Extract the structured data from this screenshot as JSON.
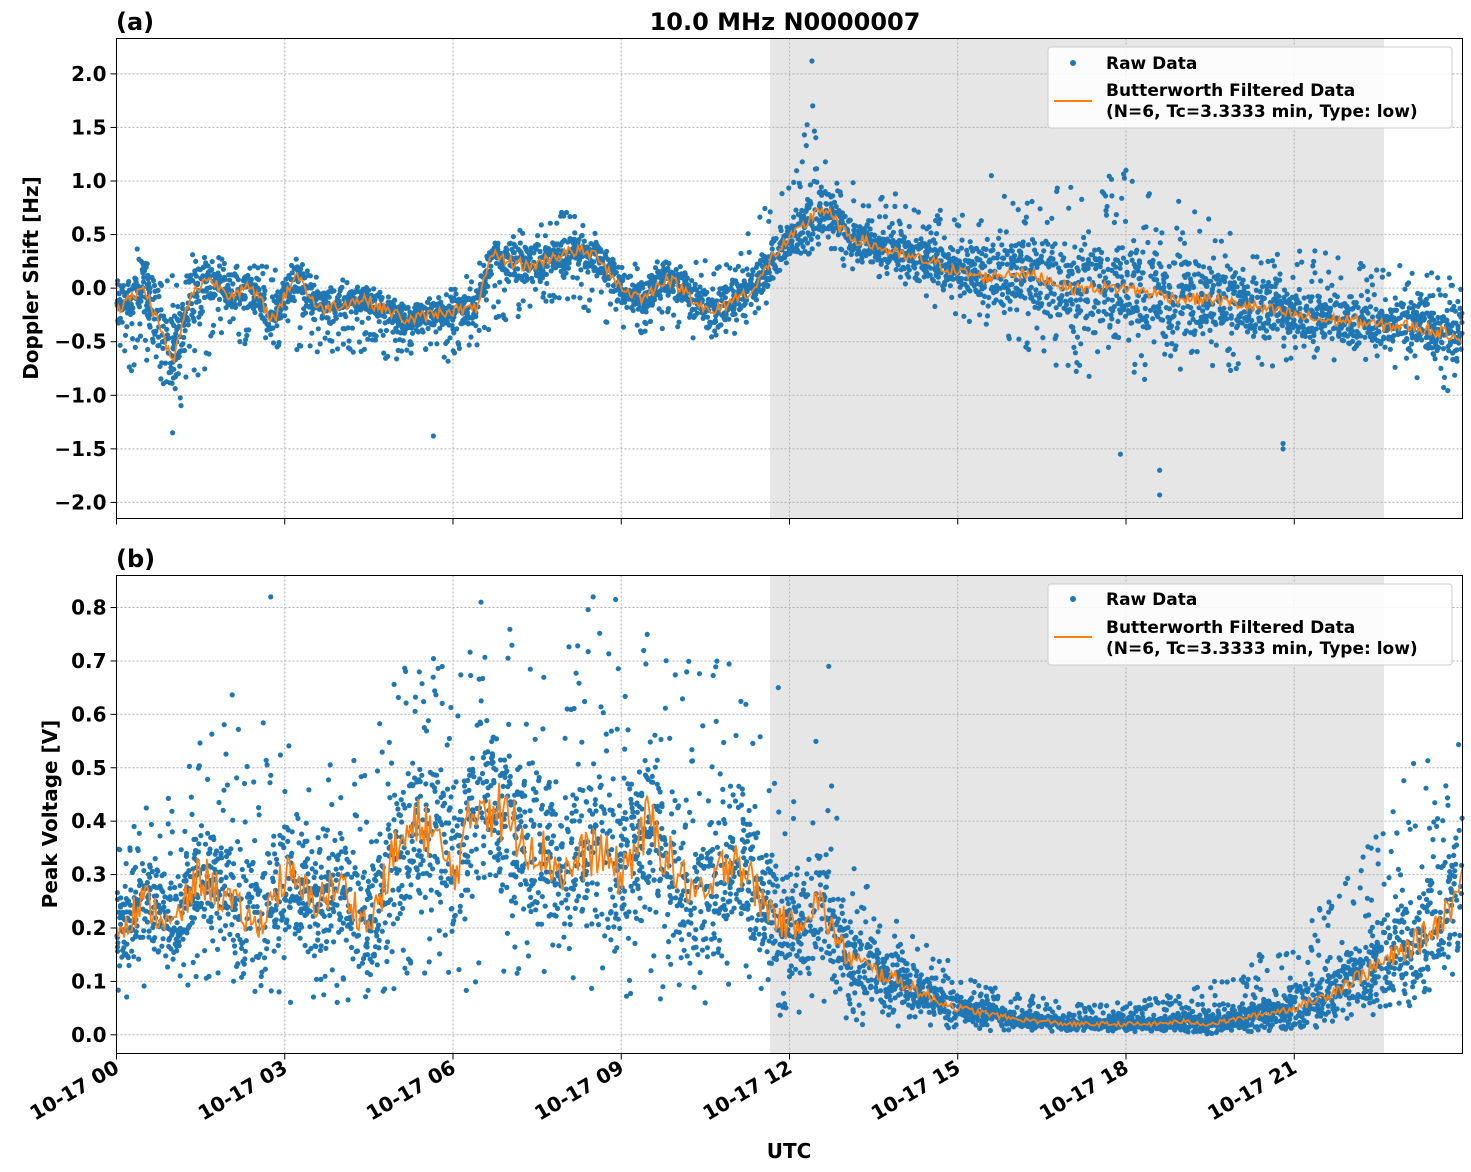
{
  "title": "10.0 MHz N0000007",
  "xlabel": "UTC",
  "x_tick_labels": [
    "10-17 00",
    "10-17 03",
    "10-17 06",
    "10-17 09",
    "10-17 12",
    "10-17 15",
    "10-17 18",
    "10-17 21"
  ],
  "legend": {
    "raw": "Raw Data",
    "filtered_line1": "Butterworth Filtered Data",
    "filtered_line2": "(N=6, Tc=3.3333 min, Type: low)"
  },
  "colors": {
    "raw": "#1f77b4",
    "filtered": "#ff7f0e",
    "shade": "#e6e6e6"
  },
  "chart_data": [
    {
      "type": "scatter",
      "panel_label": "(a)",
      "ylabel": "Doppler Shift [Hz]",
      "xlim_hours": [
        0,
        24
      ],
      "ylim": [
        -2.15,
        2.33
      ],
      "y_ticks": [
        -2.0,
        -1.5,
        -1.0,
        -0.5,
        0.0,
        0.5,
        1.0,
        1.5,
        2.0
      ],
      "y_tick_labels": [
        "−2.0",
        "−1.5",
        "−1.0",
        "−0.5",
        "0.0",
        "0.5",
        "1.0",
        "1.5",
        "2.0"
      ],
      "shaded_interval_hours": [
        11.65,
        22.6
      ],
      "grid": true,
      "legend_position": "upper right",
      "filtered_series": {
        "name": "Butterworth Filtered Data",
        "x_hours": [
          0,
          0.5,
          0.8,
          1.0,
          1.3,
          1.6,
          2.0,
          2.4,
          2.8,
          3.2,
          3.6,
          4.0,
          4.4,
          4.8,
          5.2,
          5.6,
          6.0,
          6.4,
          6.7,
          7.0,
          7.4,
          7.8,
          8.2,
          8.6,
          9.0,
          9.4,
          9.8,
          10.2,
          10.6,
          11.0,
          11.4,
          11.7,
          12.0,
          12.3,
          12.5,
          12.7,
          13.0,
          13.5,
          14.0,
          14.5,
          15.0,
          15.5,
          16.0,
          16.5,
          17.0,
          17.5,
          18.0,
          18.5,
          19.0,
          19.5,
          20.0,
          20.5,
          21.0,
          21.5,
          22.0,
          22.5,
          23.0,
          23.5,
          24.0
        ],
        "values": [
          -0.2,
          0.0,
          -0.4,
          -0.7,
          -0.1,
          0.1,
          -0.05,
          0.0,
          -0.3,
          0.15,
          -0.2,
          -0.15,
          -0.1,
          -0.2,
          -0.3,
          -0.25,
          -0.2,
          -0.2,
          0.3,
          0.25,
          0.2,
          0.3,
          0.35,
          0.3,
          0.0,
          -0.1,
          0.1,
          -0.05,
          -0.25,
          -0.1,
          0.0,
          0.3,
          0.45,
          0.6,
          0.75,
          0.7,
          0.5,
          0.4,
          0.3,
          0.25,
          0.15,
          0.1,
          0.15,
          0.1,
          0.0,
          0.0,
          0.0,
          -0.05,
          -0.1,
          -0.1,
          -0.15,
          -0.2,
          -0.25,
          -0.3,
          -0.3,
          -0.35,
          -0.35,
          -0.4,
          -0.45
        ]
      },
      "raw_series": {
        "name": "Raw Data",
        "envelope_x_hours": [
          0,
          1.0,
          2.0,
          3.0,
          4.0,
          5.0,
          6.0,
          7.0,
          8.0,
          9.0,
          10.0,
          11.0,
          11.65,
          12.0,
          12.4,
          12.6,
          13.0,
          14.0,
          15.0,
          16.0,
          17.0,
          18.0,
          19.0,
          20.0,
          21.0,
          22.0,
          23.0,
          24.0
        ],
        "envelope_low": [
          -0.6,
          -1.3,
          -0.5,
          -0.6,
          -0.6,
          -0.7,
          -0.7,
          -0.3,
          -0.1,
          -0.4,
          -0.5,
          -0.5,
          -0.1,
          0.2,
          0.3,
          0.3,
          0.2,
          0.0,
          -0.3,
          -0.5,
          -0.8,
          -0.9,
          -0.8,
          -0.8,
          -0.7,
          -0.7,
          -0.8,
          -1.1
        ],
        "envelope_high": [
          0.35,
          0.4,
          0.3,
          0.25,
          0.1,
          -0.1,
          0.0,
          0.5,
          0.75,
          0.3,
          0.25,
          0.3,
          0.9,
          1.0,
          1.8,
          1.2,
          1.0,
          0.9,
          0.7,
          0.9,
          1.0,
          1.1,
          0.8,
          0.5,
          0.4,
          0.3,
          0.2,
          0.1
        ],
        "outliers": [
          [
            1.0,
            -1.35
          ],
          [
            5.65,
            -1.38
          ],
          [
            12.4,
            2.12
          ],
          [
            17.9,
            -1.55
          ],
          [
            18.6,
            -1.93
          ],
          [
            18.6,
            -1.7
          ],
          [
            20.8,
            -1.5
          ],
          [
            20.8,
            -1.45
          ],
          [
            18.0,
            1.1
          ],
          [
            15.6,
            1.05
          ]
        ]
      }
    },
    {
      "type": "scatter",
      "panel_label": "(b)",
      "ylabel": "Peak Voltage [V]",
      "xlim_hours": [
        0,
        24
      ],
      "ylim": [
        -0.035,
        0.86
      ],
      "y_ticks": [
        0.0,
        0.1,
        0.2,
        0.3,
        0.4,
        0.5,
        0.6,
        0.7,
        0.8
      ],
      "y_tick_labels": [
        "0.0",
        "0.1",
        "0.2",
        "0.3",
        "0.4",
        "0.5",
        "0.6",
        "0.7",
        "0.8"
      ],
      "shaded_interval_hours": [
        11.65,
        22.6
      ],
      "grid": true,
      "legend_position": "upper right",
      "filtered_series": {
        "name": "Butterworth Filtered Data",
        "x_hours": [
          0,
          0.5,
          1.0,
          1.5,
          2.0,
          2.5,
          3.0,
          3.5,
          4.0,
          4.5,
          5.0,
          5.5,
          6.0,
          6.5,
          7.0,
          7.5,
          8.0,
          8.5,
          9.0,
          9.5,
          10.0,
          10.5,
          11.0,
          11.5,
          12.0,
          12.5,
          13.0,
          13.5,
          14.0,
          14.5,
          15.0,
          15.5,
          16.0,
          16.5,
          17.0,
          17.5,
          18.0,
          18.5,
          19.0,
          19.5,
          20.0,
          20.5,
          21.0,
          21.5,
          22.0,
          22.5,
          23.0,
          23.5,
          24.0
        ],
        "values": [
          0.2,
          0.25,
          0.2,
          0.3,
          0.25,
          0.2,
          0.3,
          0.25,
          0.28,
          0.2,
          0.35,
          0.4,
          0.3,
          0.45,
          0.4,
          0.35,
          0.3,
          0.35,
          0.3,
          0.4,
          0.3,
          0.25,
          0.35,
          0.25,
          0.2,
          0.25,
          0.15,
          0.12,
          0.1,
          0.07,
          0.05,
          0.04,
          0.03,
          0.025,
          0.02,
          0.02,
          0.02,
          0.02,
          0.025,
          0.02,
          0.03,
          0.04,
          0.05,
          0.07,
          0.1,
          0.13,
          0.16,
          0.2,
          0.28
        ]
      },
      "raw_series": {
        "name": "Raw Data",
        "envelope_x_hours": [
          0,
          1.0,
          2.0,
          3.0,
          4.0,
          5.0,
          6.0,
          7.0,
          8.0,
          9.0,
          10.0,
          11.0,
          12.0,
          12.5,
          13.0,
          14.0,
          15.0,
          16.0,
          17.0,
          18.0,
          19.0,
          20.0,
          21.0,
          22.0,
          23.0,
          24.0
        ],
        "envelope_low": [
          0.05,
          0.08,
          0.1,
          0.06,
          0.05,
          0.08,
          0.05,
          0.1,
          0.08,
          0.07,
          0.05,
          0.06,
          0.03,
          0.05,
          0.02,
          0.01,
          0.01,
          0.005,
          0.005,
          0.005,
          0.005,
          0.005,
          0.01,
          0.02,
          0.05,
          0.08
        ],
        "envelope_high": [
          0.4,
          0.45,
          0.65,
          0.55,
          0.5,
          0.7,
          0.75,
          0.78,
          0.8,
          0.8,
          0.7,
          0.7,
          0.45,
          0.6,
          0.35,
          0.2,
          0.13,
          0.08,
          0.06,
          0.06,
          0.08,
          0.12,
          0.2,
          0.3,
          0.5,
          0.58
        ],
        "outliers": [
          [
            2.75,
            0.82
          ],
          [
            6.5,
            0.81
          ],
          [
            8.5,
            0.82
          ],
          [
            8.9,
            0.815
          ],
          [
            12.7,
            0.69
          ],
          [
            11.8,
            0.65
          ]
        ]
      }
    }
  ]
}
